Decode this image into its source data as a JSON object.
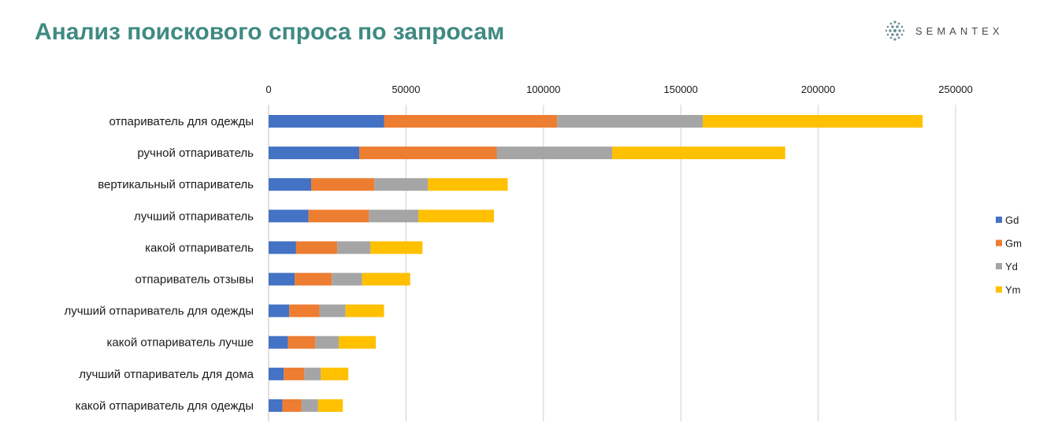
{
  "page": {
    "title": "Анализ поискового спроса по запросам"
  },
  "logo": {
    "text": "SEMANTEX",
    "icon": "dotted-globe-icon"
  },
  "chart_data": {
    "type": "bar",
    "orientation": "horizontal",
    "stacked": true,
    "categories": [
      "отпариватель для одежды",
      "ручной отпариватель",
      "вертикальный отпариватель",
      "лучший отпариватель",
      "какой отпариватель",
      "отпариватель отзывы",
      "лучший отпариватель для одежды",
      "какой отпариватель лучше",
      "лучший отпариватель для дома",
      "какой отпариватель для одежды"
    ],
    "series": [
      {
        "name": "Gd",
        "color": "#4472c4",
        "values": [
          42000,
          33000,
          15500,
          14500,
          10000,
          9500,
          7500,
          7000,
          5500,
          5000
        ]
      },
      {
        "name": "Gm",
        "color": "#ed7d31",
        "values": [
          63000,
          50000,
          23000,
          22000,
          15000,
          13500,
          11000,
          10000,
          7500,
          7000
        ]
      },
      {
        "name": "Yd",
        "color": "#a5a5a5",
        "values": [
          53000,
          42000,
          19500,
          18000,
          12000,
          11000,
          9500,
          8500,
          6000,
          6000
        ]
      },
      {
        "name": "Ym",
        "color": "#ffc000",
        "values": [
          80000,
          63000,
          29000,
          27500,
          19000,
          17500,
          14000,
          13500,
          10000,
          9000
        ]
      }
    ],
    "xlim": [
      0,
      250000
    ],
    "xticks": [
      "0",
      "50000",
      "100000",
      "150000",
      "200000",
      "250000"
    ],
    "xaxis_position": "top",
    "grid": "vertical",
    "legend": "right"
  }
}
